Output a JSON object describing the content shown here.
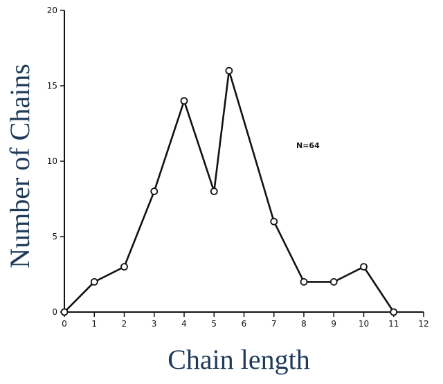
{
  "chart_data": {
    "type": "line",
    "title": "",
    "xlabel": "Chain length",
    "ylabel": "Number of Chains",
    "xlim": [
      0,
      12
    ],
    "ylim": [
      0,
      20
    ],
    "x_ticks": [
      "0",
      "1",
      "2",
      "3",
      "4",
      "5",
      "6",
      "7",
      "8",
      "9",
      "10",
      "11",
      "12"
    ],
    "y_ticks": [
      "0",
      "5",
      "10",
      "15",
      "20"
    ],
    "annotation": "N=64",
    "series": [
      {
        "x": [
          0,
          1,
          2,
          3,
          4,
          5,
          5.5,
          7,
          8,
          9,
          10,
          11
        ],
        "y": [
          0,
          2,
          3,
          8,
          14,
          8,
          16,
          6,
          2,
          2,
          3,
          0
        ]
      }
    ],
    "grid": false,
    "marker": "open-circle",
    "colors": {
      "line": "#111111",
      "label": "#1f3b5a"
    }
  }
}
